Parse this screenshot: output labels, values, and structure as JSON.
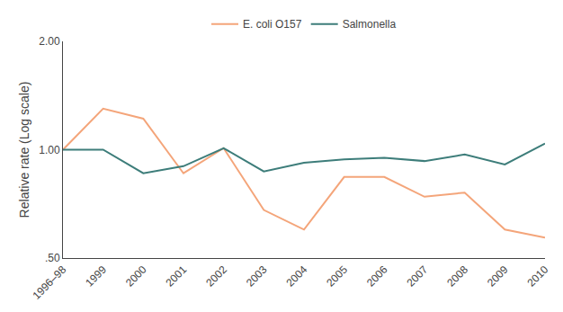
{
  "chart_data": {
    "type": "line",
    "categories": [
      "1996–98",
      "1999",
      "2000",
      "2001",
      "2002",
      "2003",
      "2004",
      "2005",
      "2006",
      "2007",
      "2008",
      "2009",
      "2010"
    ],
    "series": [
      {
        "name": "E. coli O157",
        "color": "#F4A57A",
        "values": [
          1.0,
          1.3,
          1.22,
          0.86,
          1.01,
          0.68,
          0.6,
          0.84,
          0.84,
          0.74,
          0.76,
          0.6,
          0.57
        ]
      },
      {
        "name": "Salmonella",
        "color": "#3D7D7A",
        "values": [
          1.0,
          1.0,
          0.86,
          0.9,
          1.01,
          0.87,
          0.92,
          0.94,
          0.95,
          0.93,
          0.97,
          0.91,
          1.04
        ]
      }
    ],
    "y_label": "Relative rate (Log scale)",
    "log": "y",
    "ylim": [
      0.5,
      2.0
    ],
    "yticks": [
      {
        "value": 0.5,
        "label": ".50"
      },
      {
        "value": 1.0,
        "label": "1.00"
      },
      {
        "value": 2.0,
        "label": "2.00"
      }
    ],
    "grid": false,
    "legend": "top"
  }
}
